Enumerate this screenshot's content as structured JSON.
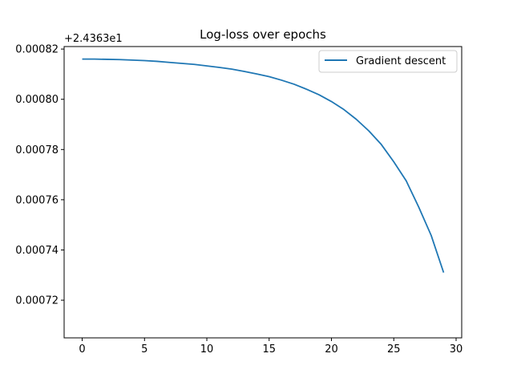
{
  "chart_data": {
    "type": "line",
    "title": "Log-loss over epochs",
    "xlabel": "",
    "ylabel": "",
    "offset_label": "+2.4363e1",
    "x_ticks": [
      "0",
      "5",
      "10",
      "15",
      "20",
      "25",
      "30"
    ],
    "y_ticks": [
      "0.00072",
      "0.00074",
      "0.00076",
      "0.00078",
      "0.00080",
      "0.00082"
    ],
    "xlim": [
      -1.45,
      30.45
    ],
    "ylim": [
      0.000705,
      0.000821
    ],
    "grid": false,
    "legend_position": "top-right",
    "series": [
      {
        "name": "Gradient descent",
        "color": "#1f77b4",
        "x": [
          0,
          1,
          2,
          3,
          4,
          5,
          6,
          7,
          8,
          9,
          10,
          11,
          12,
          13,
          14,
          15,
          16,
          17,
          18,
          19,
          20,
          21,
          22,
          23,
          24,
          25,
          26,
          27,
          28,
          29
        ],
        "y": [
          0.000816,
          0.000816,
          0.0008159,
          0.0008158,
          0.0008156,
          0.0008154,
          0.0008151,
          0.0008147,
          0.0008143,
          0.0008139,
          0.0008133,
          0.0008127,
          0.000812,
          0.0008111,
          0.0008101,
          0.000809,
          0.0008076,
          0.000806,
          0.000804,
          0.0008018,
          0.0007991,
          0.0007959,
          0.000792,
          0.0007874,
          0.000782,
          0.0007751,
          0.0007675,
          0.0007571,
          0.0007458,
          0.000731
        ]
      }
    ]
  }
}
